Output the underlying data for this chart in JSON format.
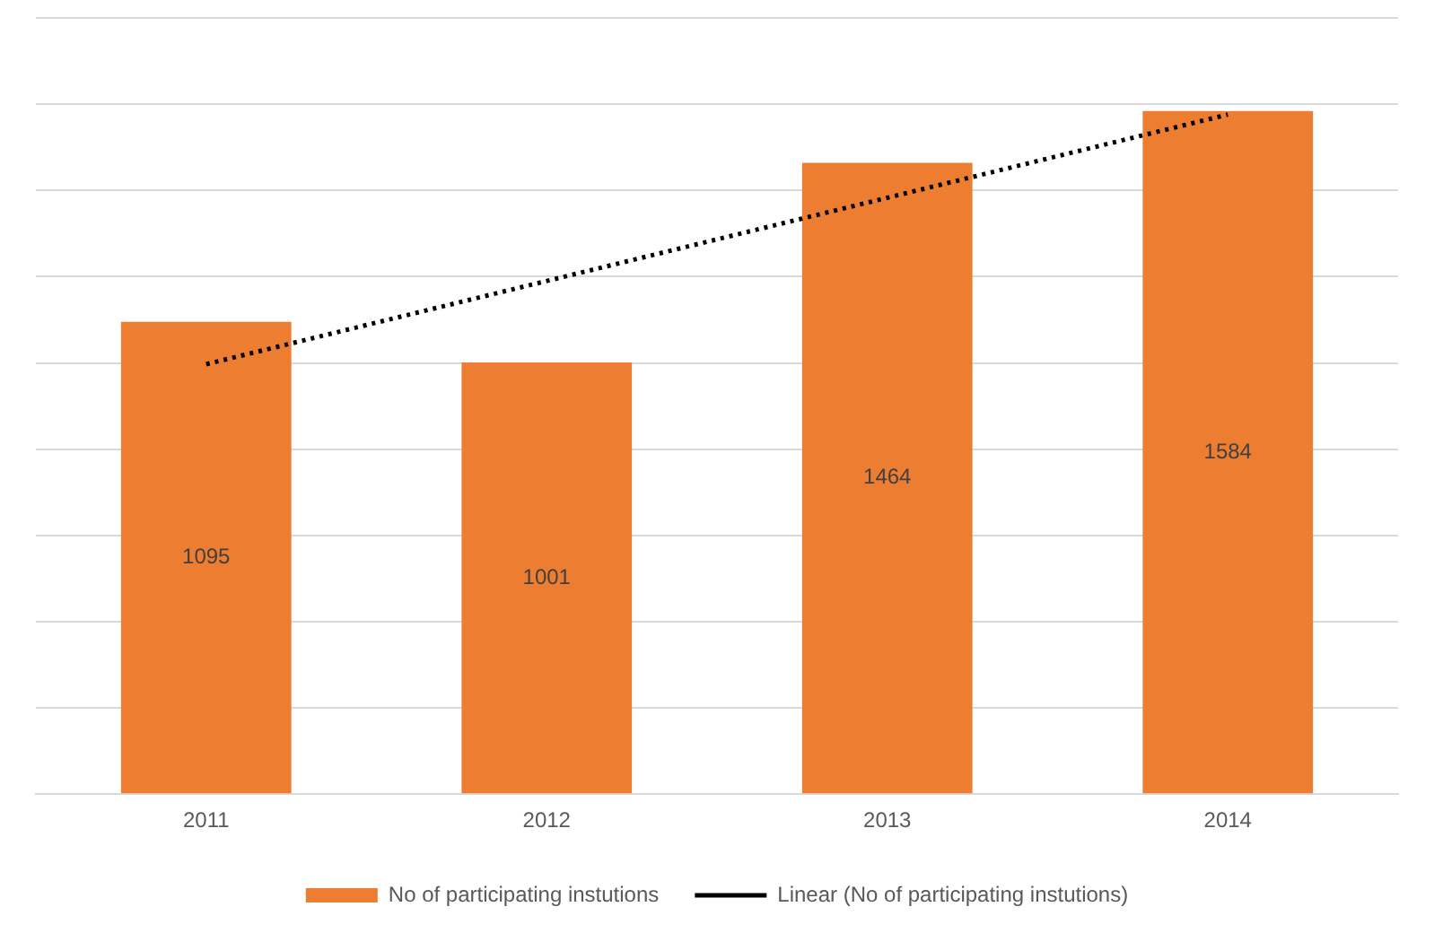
{
  "chart_data": {
    "type": "bar",
    "categories": [
      "2011",
      "2012",
      "2013",
      "2014"
    ],
    "series": [
      {
        "name": "No of participating instutions",
        "color": "#ed7d31",
        "values": [
          1095,
          1001,
          1464,
          1584
        ],
        "value_labels": [
          "1095",
          "1001",
          "1464",
          "1584"
        ]
      },
      {
        "name": "Linear (No of participating instutions)",
        "type": "line",
        "color": "#000000",
        "values": [
          997,
          null,
          null,
          1576
        ],
        "line_style": "dotted"
      }
    ],
    "ylim": [
      0,
      1800
    ],
    "yticks": [
      {
        "value": 0,
        "label": null
      },
      {
        "value": 200,
        "label": null
      },
      {
        "value": 400,
        "label": null
      },
      {
        "value": 600,
        "label": null
      },
      {
        "value": 800,
        "label": null
      },
      {
        "value": 1000,
        "label": null
      },
      {
        "value": 1200,
        "label": null
      },
      {
        "value": 1400,
        "label": null
      },
      {
        "value": 1600,
        "label": null
      },
      {
        "value": 1800,
        "label": null
      }
    ],
    "tick_labels": "x",
    "grid": "y",
    "legend": "bottom"
  }
}
